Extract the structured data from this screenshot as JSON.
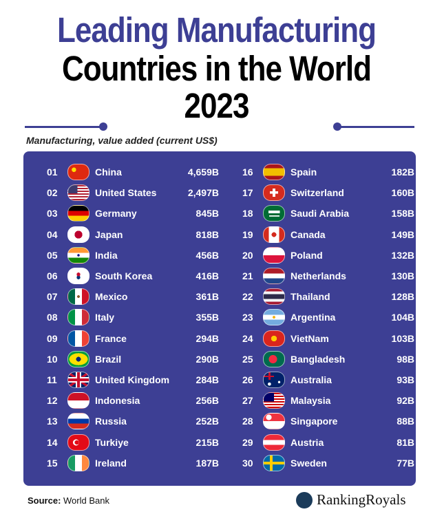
{
  "title": {
    "line1": "Leading Manufacturing",
    "line2": "Countries in the World",
    "line3": "2023"
  },
  "subtitle": "Manufacturing, value added (current US$)",
  "colors": {
    "accent": "#3d3f94"
  },
  "left_column": [
    {
      "rank": "01",
      "country": "China",
      "value": "4,659B",
      "flag": "cn"
    },
    {
      "rank": "02",
      "country": "United States",
      "value": "2,497B",
      "flag": "us"
    },
    {
      "rank": "03",
      "country": "Germany",
      "value": "845B",
      "flag": "de"
    },
    {
      "rank": "04",
      "country": "Japan",
      "value": "818B",
      "flag": "jp"
    },
    {
      "rank": "05",
      "country": "India",
      "value": "456B",
      "flag": "in"
    },
    {
      "rank": "06",
      "country": "South Korea",
      "value": "416B",
      "flag": "kr"
    },
    {
      "rank": "07",
      "country": "Mexico",
      "value": "361B",
      "flag": "mx"
    },
    {
      "rank": "08",
      "country": "Italy",
      "value": "355B",
      "flag": "it"
    },
    {
      "rank": "09",
      "country": "France",
      "value": "294B",
      "flag": "fr"
    },
    {
      "rank": "10",
      "country": "Brazil",
      "value": "290B",
      "flag": "br"
    },
    {
      "rank": "11",
      "country": "United Kingdom",
      "value": "284B",
      "flag": "gb"
    },
    {
      "rank": "12",
      "country": "Indonesia",
      "value": "256B",
      "flag": "id"
    },
    {
      "rank": "13",
      "country": "Russia",
      "value": "252B",
      "flag": "ru"
    },
    {
      "rank": "14",
      "country": "Turkiye",
      "value": "215B",
      "flag": "tr"
    },
    {
      "rank": "15",
      "country": "Ireland",
      "value": "187B",
      "flag": "ie"
    }
  ],
  "right_column": [
    {
      "rank": "16",
      "country": "Spain",
      "value": "182B",
      "flag": "es"
    },
    {
      "rank": "17",
      "country": "Switzerland",
      "value": "160B",
      "flag": "ch"
    },
    {
      "rank": "18",
      "country": "Saudi Arabia",
      "value": "158B",
      "flag": "sa"
    },
    {
      "rank": "19",
      "country": "Canada",
      "value": "149B",
      "flag": "ca"
    },
    {
      "rank": "20",
      "country": "Poland",
      "value": "132B",
      "flag": "pl"
    },
    {
      "rank": "21",
      "country": "Netherlands",
      "value": "130B",
      "flag": "nl"
    },
    {
      "rank": "22",
      "country": "Thailand",
      "value": "128B",
      "flag": "th"
    },
    {
      "rank": "23",
      "country": "Argentina",
      "value": "104B",
      "flag": "ar"
    },
    {
      "rank": "24",
      "country": "VietNam",
      "value": "103B",
      "flag": "vn"
    },
    {
      "rank": "25",
      "country": "Bangladesh",
      "value": "98B",
      "flag": "bd"
    },
    {
      "rank": "26",
      "country": "Australia",
      "value": "93B",
      "flag": "au"
    },
    {
      "rank": "27",
      "country": "Malaysia",
      "value": "92B",
      "flag": "my"
    },
    {
      "rank": "28",
      "country": "Singapore",
      "value": "88B",
      "flag": "sg"
    },
    {
      "rank": "29",
      "country": "Austria",
      "value": "81B",
      "flag": "at"
    },
    {
      "rank": "30",
      "country": "Sweden",
      "value": "77B",
      "flag": "se"
    }
  ],
  "footer": {
    "source_label": "Source:",
    "source_value": " World Bank",
    "brand": "RankingRoyals"
  }
}
